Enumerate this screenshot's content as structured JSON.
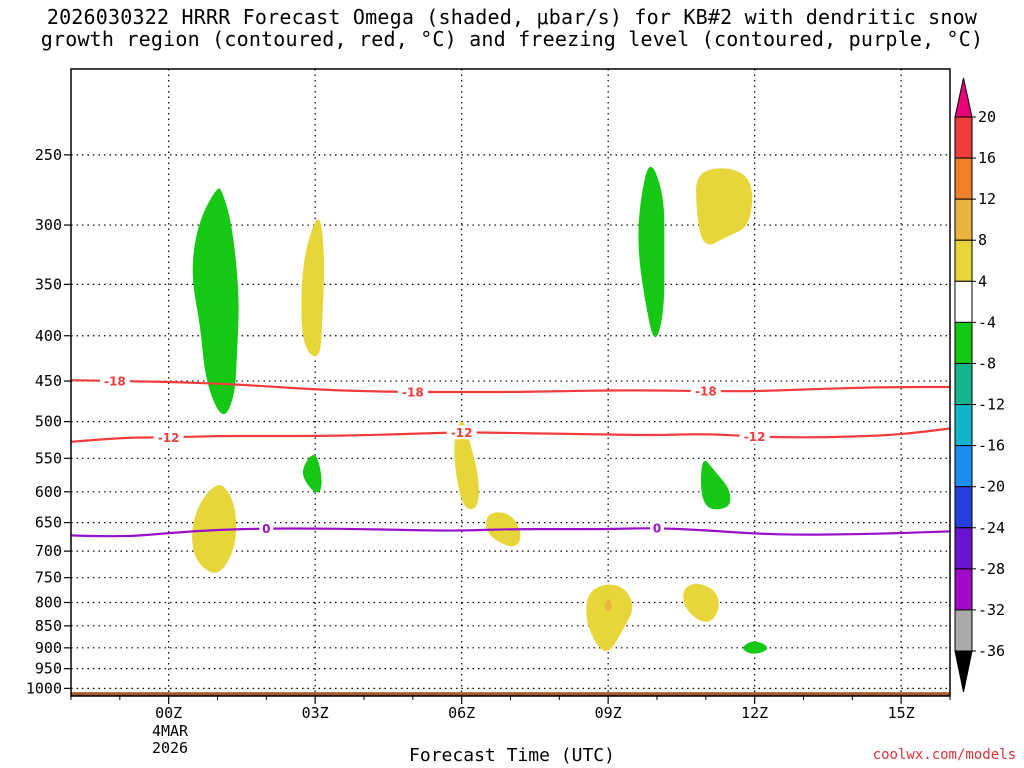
{
  "title": "2026030322 HRRR Forecast Omega (shaded, μbar/s) for KB#2 with dendritic snow\ngrowth region (contoured, red, °C) and freezing level (contoured, purple, °C)",
  "credit": "coolwx.com/models",
  "chart_data": {
    "type": "heatmap",
    "title": "2026030322 HRRR Forecast Omega (shaded, μbar/s) for KB#2 with dendritic snow growth region (contoured, red, °C) and freezing level (contoured, purple, °C)",
    "xlabel": "Forecast Time (UTC)",
    "ylabel": "",
    "x_ticks": [
      "00Z",
      "03Z",
      "06Z",
      "09Z",
      "12Z",
      "15Z"
    ],
    "x_date_day": "4MAR",
    "x_date_year": "2026",
    "xlim_hours": [
      -2,
      16
    ],
    "y_ticks_hpa": [
      250,
      300,
      350,
      400,
      450,
      500,
      550,
      600,
      650,
      700,
      750,
      800,
      850,
      900,
      950,
      1000
    ],
    "ylim_hpa": [
      200,
      1020
    ],
    "grid": true,
    "colorbar": {
      "labels": [
        20,
        16,
        12,
        8,
        4,
        -4,
        -8,
        -12,
        -16,
        -20,
        -24,
        -28,
        -32,
        -36
      ],
      "colors": [
        "#e8007a",
        "#f03c3c",
        "#f07f2a",
        "#e8b43c",
        "#e6d63a",
        "#ffffff",
        "#14c814",
        "#14b48c",
        "#14b4c8",
        "#1e8cf0",
        "#2840e0",
        "#6a14d2",
        "#a00ac8",
        "#aaaaaa",
        "#000000"
      ]
    },
    "omega_regions": [
      {
        "value": -6,
        "color": "#14c814",
        "points": [
          [
            1.0,
            271
          ],
          [
            0.6,
            298
          ],
          [
            0.45,
            340
          ],
          [
            0.65,
            390
          ],
          [
            0.75,
            450
          ],
          [
            1.1,
            500
          ],
          [
            1.35,
            470
          ],
          [
            1.4,
            420
          ],
          [
            1.45,
            360
          ],
          [
            1.3,
            300
          ],
          [
            1.1,
            275
          ]
        ]
      },
      {
        "value": 5,
        "color": "#e6d63a",
        "points": [
          [
            3.1,
            287
          ],
          [
            2.8,
            318
          ],
          [
            2.7,
            360
          ],
          [
            2.75,
            413
          ],
          [
            3.1,
            428
          ],
          [
            3.15,
            380
          ],
          [
            3.2,
            330
          ]
        ]
      },
      {
        "value": 5,
        "color": "#e6d63a",
        "points": [
          [
            1.0,
            584
          ],
          [
            0.6,
            620
          ],
          [
            0.45,
            670
          ],
          [
            0.55,
            720
          ],
          [
            1.0,
            750
          ],
          [
            1.35,
            700
          ],
          [
            1.4,
            640
          ],
          [
            1.25,
            600
          ]
        ]
      },
      {
        "value": -6,
        "color": "#14c814",
        "points": [
          [
            3.0,
            537
          ],
          [
            2.7,
            567
          ],
          [
            2.85,
            592
          ],
          [
            3.1,
            606
          ],
          [
            3.15,
            577
          ]
        ]
      },
      {
        "value": 5,
        "color": "#e6d63a",
        "points": [
          [
            6.0,
            489
          ],
          [
            5.8,
            533
          ],
          [
            6.0,
            628
          ],
          [
            6.35,
            628
          ],
          [
            6.35,
            576
          ],
          [
            6.2,
            535
          ]
        ]
      },
      {
        "value": 5,
        "color": "#e6d63a",
        "points": [
          [
            6.5,
            633
          ],
          [
            6.5,
            672
          ],
          [
            7.1,
            698
          ],
          [
            7.25,
            670
          ],
          [
            7.0,
            633
          ]
        ]
      },
      {
        "value": -6,
        "color": "#14c814",
        "points": [
          [
            9.85,
            251
          ],
          [
            9.65,
            282
          ],
          [
            9.6,
            318
          ],
          [
            9.75,
            365
          ],
          [
            9.95,
            412
          ],
          [
            10.15,
            377
          ],
          [
            10.15,
            320
          ],
          [
            10.15,
            278
          ]
        ]
      },
      {
        "value": 5,
        "color": "#e6d63a",
        "points": [
          [
            10.8,
            258
          ],
          [
            10.8,
            290
          ],
          [
            10.95,
            319
          ],
          [
            11.4,
            310
          ],
          [
            11.95,
            300
          ],
          [
            11.95,
            260
          ]
        ]
      },
      {
        "value": -6,
        "color": "#14c814",
        "points": [
          [
            10.9,
            544
          ],
          [
            10.9,
            628
          ],
          [
            11.5,
            628
          ],
          [
            11.5,
            596
          ],
          [
            11.2,
            570
          ]
        ]
      },
      {
        "value": 5,
        "color": "#e6d63a",
        "points": [
          [
            8.95,
            760
          ],
          [
            8.55,
            782
          ],
          [
            8.55,
            852
          ],
          [
            8.95,
            925
          ],
          [
            9.3,
            860
          ],
          [
            9.55,
            810
          ],
          [
            9.35,
            770
          ]
        ]
      },
      {
        "value": 10,
        "color": "#e8b43c",
        "points": [
          [
            9.0,
            790
          ],
          [
            8.9,
            806
          ],
          [
            9.0,
            822
          ],
          [
            9.1,
            806
          ]
        ]
      },
      {
        "value": 5,
        "color": "#e6d63a",
        "points": [
          [
            10.75,
            758
          ],
          [
            10.5,
            778
          ],
          [
            10.6,
            820
          ],
          [
            11.05,
            850
          ],
          [
            11.3,
            812
          ],
          [
            11.2,
            773
          ]
        ]
      },
      {
        "value": -6,
        "color": "#14c814",
        "points": [
          [
            12.0,
            880
          ],
          [
            11.7,
            900
          ],
          [
            11.95,
            918
          ],
          [
            12.35,
            902
          ]
        ]
      }
    ],
    "contours": [
      {
        "value": -18,
        "label": "-18",
        "color": "#f03c3c",
        "x": [
          -2,
          -1,
          0,
          1,
          2,
          3,
          4,
          5,
          6,
          7,
          8,
          9,
          10,
          11,
          12,
          13,
          14,
          15,
          16
        ],
        "y": [
          449,
          450,
          451,
          453,
          456,
          460,
          462,
          463,
          463,
          463,
          462,
          461,
          461,
          462,
          462,
          460,
          458,
          457,
          457
        ]
      },
      {
        "value": -12,
        "label": "-12",
        "color": "#f03c3c",
        "x": [
          -2,
          -1,
          0,
          1,
          2,
          3,
          4,
          5,
          6,
          7,
          8,
          9,
          10,
          11,
          12,
          13,
          14,
          15,
          16
        ],
        "y": [
          527,
          521,
          521,
          519,
          519,
          519,
          518,
          516,
          514,
          515,
          516,
          517,
          518,
          516,
          520,
          521,
          520,
          517,
          509
        ]
      },
      {
        "value": 0,
        "label": "0",
        "color": "#9a10c8",
        "x": [
          -2,
          -1,
          0,
          1,
          2,
          3,
          4,
          5,
          6,
          7,
          8,
          9,
          10,
          11,
          12,
          13,
          14,
          15,
          16
        ],
        "y": [
          672,
          675,
          668,
          662,
          660,
          660,
          661,
          663,
          664,
          661,
          661,
          661,
          659,
          663,
          669,
          671,
          670,
          668,
          665
        ]
      }
    ],
    "contour_label_positions": [
      {
        "label": "-18",
        "x": -1.1,
        "y": 450
      },
      {
        "label": "-18",
        "x": 5.0,
        "y": 463
      },
      {
        "label": "-18",
        "x": 11.0,
        "y": 462
      },
      {
        "label": "-12",
        "x": 0.0,
        "y": 521
      },
      {
        "label": "-12",
        "x": 6.0,
        "y": 514
      },
      {
        "label": "-12",
        "x": 12.0,
        "y": 520
      },
      {
        "label": "0",
        "x": 2.0,
        "y": 660
      },
      {
        "label": "0",
        "x": 10.0,
        "y": 659
      }
    ],
    "ground_layer": {
      "color": "#a25a2a",
      "from_hpa": 1010
    }
  }
}
